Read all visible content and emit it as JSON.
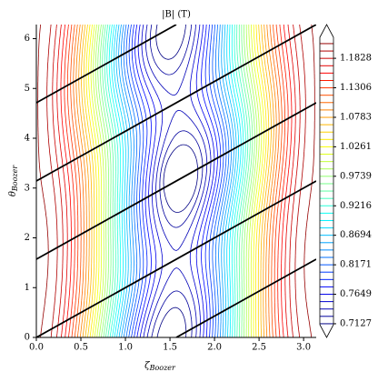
{
  "chart_data": {
    "type": "contour",
    "title": "|B| (T)",
    "xlabel": "ζ",
    "xlabel_sub": "Boozer",
    "ylabel": "θ",
    "ylabel_sub": "Boozer",
    "xlim": [
      0,
      3.1416
    ],
    "ylim": [
      0,
      6.2832
    ],
    "xticks": [
      {
        "value": 0,
        "label": "0.0"
      },
      0.5,
      {
        "value": 1,
        "label": "1.0"
      },
      1.5,
      {
        "value": 2,
        "label": "2.0"
      },
      2.5,
      {
        "value": 3,
        "label": "3.0"
      }
    ],
    "yticks": [
      0,
      1,
      2,
      3,
      4,
      5,
      6
    ],
    "levels": [
      0.7127,
      0.7258,
      0.7388,
      0.7519,
      0.7649,
      0.778,
      0.791,
      0.8041,
      0.8171,
      0.8302,
      0.8433,
      0.8563,
      0.8694,
      0.8824,
      0.8955,
      0.9085,
      0.9216,
      0.9346,
      0.9477,
      0.9607,
      0.9738,
      0.9869,
      0.9999,
      1.013,
      1.026,
      1.0391,
      1.0521,
      1.0652,
      1.0782,
      1.0913,
      1.1044,
      1.1174,
      1.1305,
      1.1435,
      1.1566,
      1.1696,
      1.1827,
      1.1957,
      1.2088
    ],
    "clim": [
      0.711,
      1.22
    ],
    "colorbar_ticks": [
      0.7127,
      0.7649,
      0.8171,
      0.8694,
      0.9216,
      0.9739,
      1.0261,
      1.0783,
      1.1306,
      1.1828
    ],
    "colormap": "jet",
    "field_lines": [
      {
        "color": "#000000",
        "zeta": [
          1.5708,
          3.1416
        ],
        "theta": [
          0,
          1.5708
        ]
      },
      {
        "color": "#000000",
        "zeta": [
          0,
          3.1416
        ],
        "theta": [
          0,
          3.1416
        ]
      },
      {
        "color": "#000000",
        "zeta": [
          0,
          3.1416
        ],
        "theta": [
          1.5708,
          4.7124
        ]
      },
      {
        "color": "#000000",
        "zeta": [
          0,
          3.1416
        ],
        "theta": [
          3.1416,
          6.2832
        ]
      },
      {
        "color": "#000000",
        "zeta": [
          0,
          1.5708
        ],
        "theta": [
          4.7124,
          6.2832
        ]
      }
    ]
  }
}
